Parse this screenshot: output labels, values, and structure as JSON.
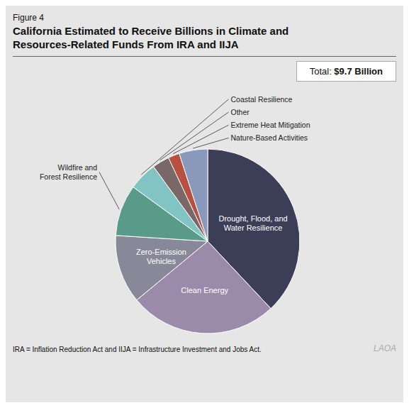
{
  "chart_data": {
    "type": "pie",
    "title": "California Estimated to Receive Billions in Climate and\nResources-Related Funds From IRA and IIJA",
    "annotations": [
      "Figure 4",
      "Total: ",
      "$9.7 Billion",
      "IRA = Inflation Reduction Act and IIJA = Infrastructure Investment and Jobs Act.",
      "LAOA"
    ],
    "categories": [
      "Drought, Flood, and\nWater Resilience",
      "Clean Energy",
      "Zero-Emission\nVehicles",
      "Wildfire and\nForest Resilience",
      "Coastal Resilience",
      "Other",
      "Extreme Heat Mitigation",
      "Nature-Based Activities"
    ],
    "values": [
      38,
      26,
      12,
      9,
      5,
      3,
      2,
      5
    ],
    "colors": [
      "#3c3d56",
      "#9c8aab",
      "#888898",
      "#5a9a89",
      "#82c4c4",
      "#7a6868",
      "#b85040",
      "#8899bb"
    ]
  }
}
